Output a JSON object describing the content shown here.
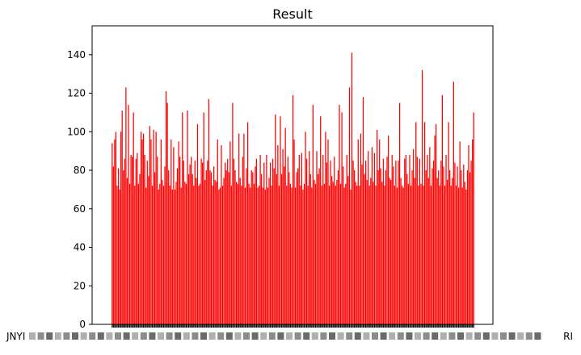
{
  "chart_data": {
    "type": "bar",
    "title": "Result",
    "xlabel": "",
    "ylabel": "",
    "ylim": [
      0,
      155
    ],
    "y_ticks": [
      0,
      20,
      40,
      60,
      80,
      100,
      120,
      140
    ],
    "bar_color": "#ff0000",
    "grid": false,
    "legend": "none",
    "x_tick_labels_visible": [
      "JNYI",
      "RI"
    ],
    "values": [
      94,
      82,
      96,
      100,
      72,
      81,
      70,
      100,
      111,
      80,
      86,
      123,
      76,
      114,
      73,
      88,
      87,
      110,
      72,
      86,
      89,
      73,
      78,
      100,
      96,
      99,
      88,
      71,
      85,
      77,
      103,
      96,
      72,
      101,
      79,
      100,
      87,
      70,
      73,
      96,
      75,
      72,
      82,
      121,
      115,
      80,
      72,
      96,
      70,
      92,
      70,
      74,
      81,
      95,
      87,
      71,
      110,
      85,
      74,
      73,
      111,
      78,
      83,
      87,
      78,
      72,
      85,
      76,
      104,
      72,
      73,
      86,
      84,
      110,
      75,
      80,
      85,
      117,
      80,
      79,
      72,
      82,
      75,
      74,
      96,
      70,
      71,
      93,
      72,
      76,
      84,
      80,
      86,
      79,
      95,
      72,
      115,
      86,
      80,
      74,
      73,
      99,
      76,
      72,
      87,
      99,
      71,
      81,
      105,
      73,
      71,
      80,
      79,
      73,
      82,
      86,
      71,
      72,
      88,
      78,
      71,
      84,
      70,
      88,
      71,
      76,
      84,
      72,
      86,
      81,
      109,
      78,
      93,
      72,
      108,
      78,
      91,
      82,
      102,
      72,
      87,
      79,
      73,
      71,
      119,
      96,
      71,
      79,
      81,
      88,
      72,
      89,
      70,
      73,
      100,
      86,
      72,
      90,
      78,
      71,
      114,
      75,
      73,
      90,
      78,
      81,
      108,
      72,
      88,
      73,
      100,
      84,
      96,
      72,
      85,
      77,
      74,
      87,
      72,
      75,
      80,
      114,
      73,
      110,
      82,
      71,
      73,
      88,
      77,
      123,
      70,
      141,
      85,
      80,
      74,
      72,
      96,
      72,
      99,
      83,
      118,
      78,
      85,
      75,
      90,
      72,
      76,
      92,
      74,
      89,
      72,
      101,
      80,
      96,
      81,
      74,
      86,
      72,
      80,
      87,
      98,
      76,
      75,
      88,
      82,
      72,
      85,
      71,
      85,
      115,
      76,
      72,
      71,
      86,
      88,
      78,
      73,
      88,
      72,
      80,
      91,
      76,
      105,
      87,
      72,
      86,
      73,
      132,
      72,
      105,
      80,
      88,
      76,
      92,
      72,
      81,
      85,
      98,
      104,
      76,
      80,
      72,
      85,
      119,
      82,
      72,
      88,
      75,
      105,
      80,
      72,
      76,
      126,
      84,
      72,
      82,
      71,
      95,
      80,
      71,
      83,
      74,
      70,
      80,
      93,
      79,
      85,
      96,
      110
    ]
  }
}
